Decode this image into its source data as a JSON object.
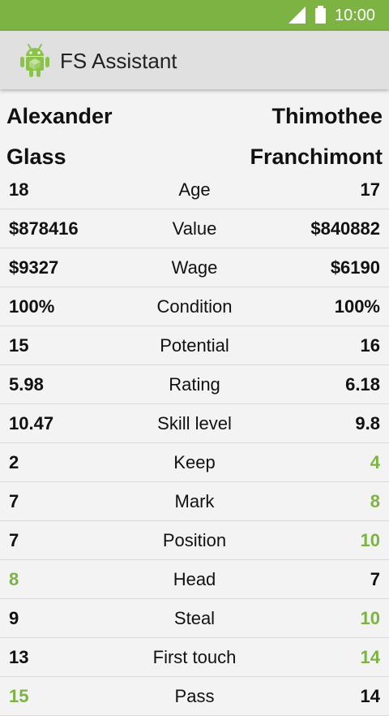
{
  "status_bar": {
    "time": "10:00"
  },
  "app_bar": {
    "title": "FS Assistant"
  },
  "players": {
    "left": {
      "first": "Alexander",
      "last": "Glass"
    },
    "right": {
      "first": "Thimothee",
      "last": "Franchimont"
    }
  },
  "colors": {
    "accent": "#7cb342",
    "app_bar": "#e0e0e0"
  },
  "rows": [
    {
      "label": "Age",
      "left": "18",
      "right": "17",
      "winner": "none"
    },
    {
      "label": "Value",
      "left": "$878416",
      "right": "$840882",
      "winner": "none"
    },
    {
      "label": "Wage",
      "left": "$9327",
      "right": "$6190",
      "winner": "none"
    },
    {
      "label": "Condition",
      "left": "100%",
      "right": "100%",
      "winner": "none"
    },
    {
      "label": "Potential",
      "left": "15",
      "right": "16",
      "winner": "none"
    },
    {
      "label": "Rating",
      "left": "5.98",
      "right": "6.18",
      "winner": "none"
    },
    {
      "label": "Skill level",
      "left": "10.47",
      "right": "9.8",
      "winner": "none"
    },
    {
      "label": "Keep",
      "left": "2",
      "right": "4",
      "winner": "right"
    },
    {
      "label": "Mark",
      "left": "7",
      "right": "8",
      "winner": "right"
    },
    {
      "label": "Position",
      "left": "7",
      "right": "10",
      "winner": "right"
    },
    {
      "label": "Head",
      "left": "8",
      "right": "7",
      "winner": "left"
    },
    {
      "label": "Steal",
      "left": "9",
      "right": "10",
      "winner": "right"
    },
    {
      "label": "First touch",
      "left": "13",
      "right": "14",
      "winner": "right"
    },
    {
      "label": "Pass",
      "left": "15",
      "right": "14",
      "winner": "left"
    }
  ]
}
